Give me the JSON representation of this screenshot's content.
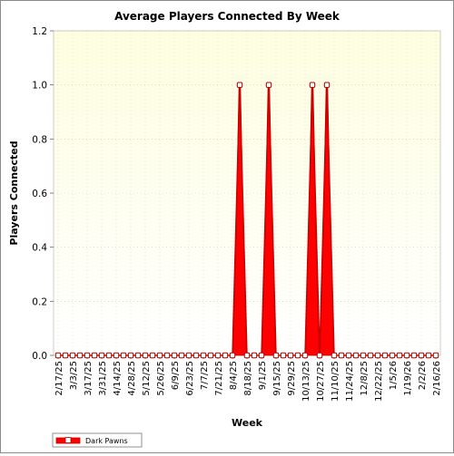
{
  "chart_data": {
    "type": "line",
    "title": "Average Players Connected By Week",
    "xlabel": "Week",
    "ylabel": "Players Connected",
    "ylim": [
      0,
      1.2
    ],
    "y_ticks": [
      "0.0",
      "0.2",
      "0.4",
      "0.6",
      "0.8",
      "1.0",
      "1.2"
    ],
    "x_tick_labels": [
      "2/17/25",
      "3/3/25",
      "3/17/25",
      "3/31/25",
      "4/14/25",
      "4/28/25",
      "5/12/25",
      "5/26/25",
      "6/9/25",
      "6/23/25",
      "7/7/25",
      "7/21/25",
      "8/4/25",
      "8/18/25",
      "9/1/25",
      "9/15/25",
      "9/29/25",
      "10/13/25",
      "10/27/25",
      "11/10/25",
      "11/24/25",
      "12/8/25",
      "12/22/25",
      "1/5/26",
      "1/19/26",
      "2/2/26",
      "2/16/26"
    ],
    "grid": true,
    "legend_position": "bottom-left",
    "colors": {
      "series": "#cc0000",
      "fill": "#ff0000",
      "plot_bg_top": "#fefee6",
      "plot_bg_bottom": "#ffffff"
    },
    "series": [
      {
        "name": "Dark Pawns",
        "x": [
          "2/17/25",
          "2/24/25",
          "3/3/25",
          "3/10/25",
          "3/17/25",
          "3/24/25",
          "3/31/25",
          "4/7/25",
          "4/14/25",
          "4/21/25",
          "4/28/25",
          "5/5/25",
          "5/12/25",
          "5/19/25",
          "5/26/25",
          "6/2/25",
          "6/9/25",
          "6/16/25",
          "6/23/25",
          "6/30/25",
          "7/7/25",
          "7/14/25",
          "7/21/25",
          "7/28/25",
          "8/4/25",
          "8/11/25",
          "8/18/25",
          "8/25/25",
          "9/1/25",
          "9/8/25",
          "9/15/25",
          "9/22/25",
          "9/29/25",
          "10/6/25",
          "10/13/25",
          "10/20/25",
          "10/27/25",
          "11/3/25",
          "11/10/25",
          "11/17/25",
          "11/24/25",
          "12/1/25",
          "12/8/25",
          "12/15/25",
          "12/22/25",
          "12/29/25",
          "1/5/26",
          "1/12/26",
          "1/19/26",
          "1/26/26",
          "2/2/26",
          "2/9/26",
          "2/16/26"
        ],
        "values": [
          0,
          0,
          0,
          0,
          0,
          0,
          0,
          0,
          0,
          0,
          0,
          0,
          0,
          0,
          0,
          0,
          0,
          0,
          0,
          0,
          0,
          0,
          0,
          0,
          0,
          1,
          0,
          0,
          0,
          1,
          0,
          0,
          0,
          0,
          0,
          1,
          0,
          1,
          0,
          0,
          0,
          0,
          0,
          0,
          0,
          0,
          0,
          0,
          0,
          0,
          0,
          0,
          0
        ]
      }
    ]
  }
}
